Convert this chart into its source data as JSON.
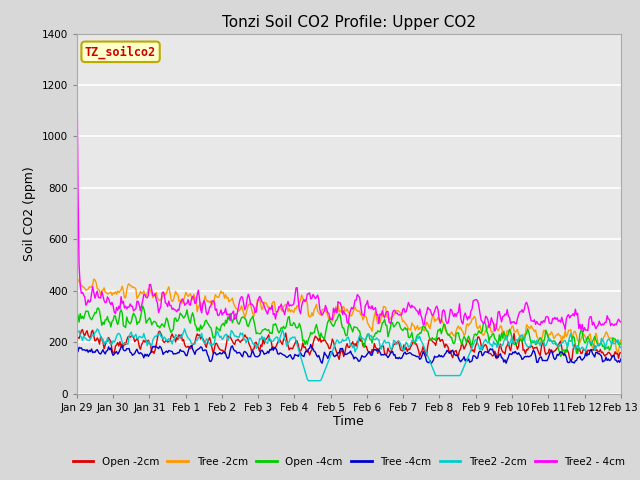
{
  "title": "Tonzi Soil CO2 Profile: Upper CO2",
  "xlabel": "Time",
  "ylabel": "Soil CO2 (ppm)",
  "ylim": [
    0,
    1400
  ],
  "yticks": [
    0,
    200,
    400,
    600,
    800,
    1000,
    1200,
    1400
  ],
  "background_color": "#d8d8d8",
  "plot_bg_color": "#e8e8e8",
  "grid_color": "#ffffff",
  "series": [
    {
      "label": "Open -2cm",
      "color": "#dd0000",
      "lw": 1.0
    },
    {
      "label": "Tree -2cm",
      "color": "#ff9900",
      "lw": 1.0
    },
    {
      "label": "Open -4cm",
      "color": "#00cc00",
      "lw": 1.0
    },
    {
      "label": "Tree -4cm",
      "color": "#0000cc",
      "lw": 1.0
    },
    {
      "label": "Tree2 -2cm",
      "color": "#00cccc",
      "lw": 1.0
    },
    {
      "label": "Tree2 - 4cm",
      "color": "#ff00ff",
      "lw": 1.0
    }
  ],
  "date_labels": [
    "Jan 29",
    "Jan 30",
    "Jan 31",
    "Feb 1",
    "Feb 2",
    "Feb 3",
    "Feb 4",
    "Feb 5",
    "Feb 6",
    "Feb 7",
    "Feb 8",
    "Feb 9",
    "Feb 10",
    "Feb 11",
    "Feb 12",
    "Feb 13"
  ],
  "n_points": 480,
  "watermark_text": "TZ_soilco2",
  "watermark_color": "#cc0000",
  "watermark_bg": "#ffffcc",
  "watermark_border": "#bbaa00"
}
